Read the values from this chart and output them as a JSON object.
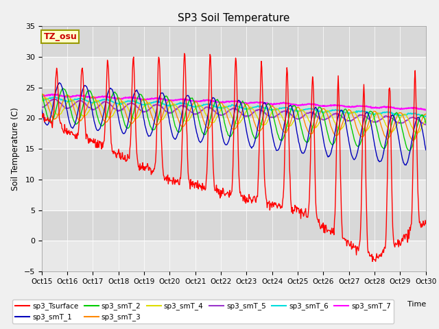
{
  "title": "SP3 Soil Temperature",
  "ylabel": "Soil Temperature (C)",
  "xlabel": "Time",
  "tz_label": "TZ_osu",
  "xlim": [
    0,
    15
  ],
  "ylim": [
    -5,
    35
  ],
  "yticks": [
    -5,
    0,
    5,
    10,
    15,
    20,
    25,
    30,
    35
  ],
  "xtick_positions": [
    0,
    1,
    2,
    3,
    4,
    5,
    6,
    7,
    8,
    9,
    10,
    11,
    12,
    13,
    14,
    15
  ],
  "xtick_labels": [
    "Oct 15",
    "Oct 16",
    "Oct 17",
    "Oct 18",
    "Oct 19",
    "Oct 20",
    "Oct 21",
    "Oct 22",
    "Oct 23",
    "Oct 24",
    "Oct 25",
    "Oct 26",
    "Oct 27",
    "Oct 28",
    "Oct 29",
    "Oct 30"
  ],
  "series_colors": {
    "sp3_Tsurface": "#ff0000",
    "sp3_smT_1": "#0000bb",
    "sp3_smT_2": "#00cc00",
    "sp3_smT_3": "#ff8800",
    "sp3_smT_4": "#dddd00",
    "sp3_smT_5": "#9933cc",
    "sp3_smT_6": "#00dddd",
    "sp3_smT_7": "#ff00ff"
  },
  "fig_bg": "#f0f0f0",
  "plot_bg": "#e0e0e0",
  "band_colors": [
    "#e8e8e8",
    "#d8d8d8"
  ],
  "grid_color": "#ffffff"
}
